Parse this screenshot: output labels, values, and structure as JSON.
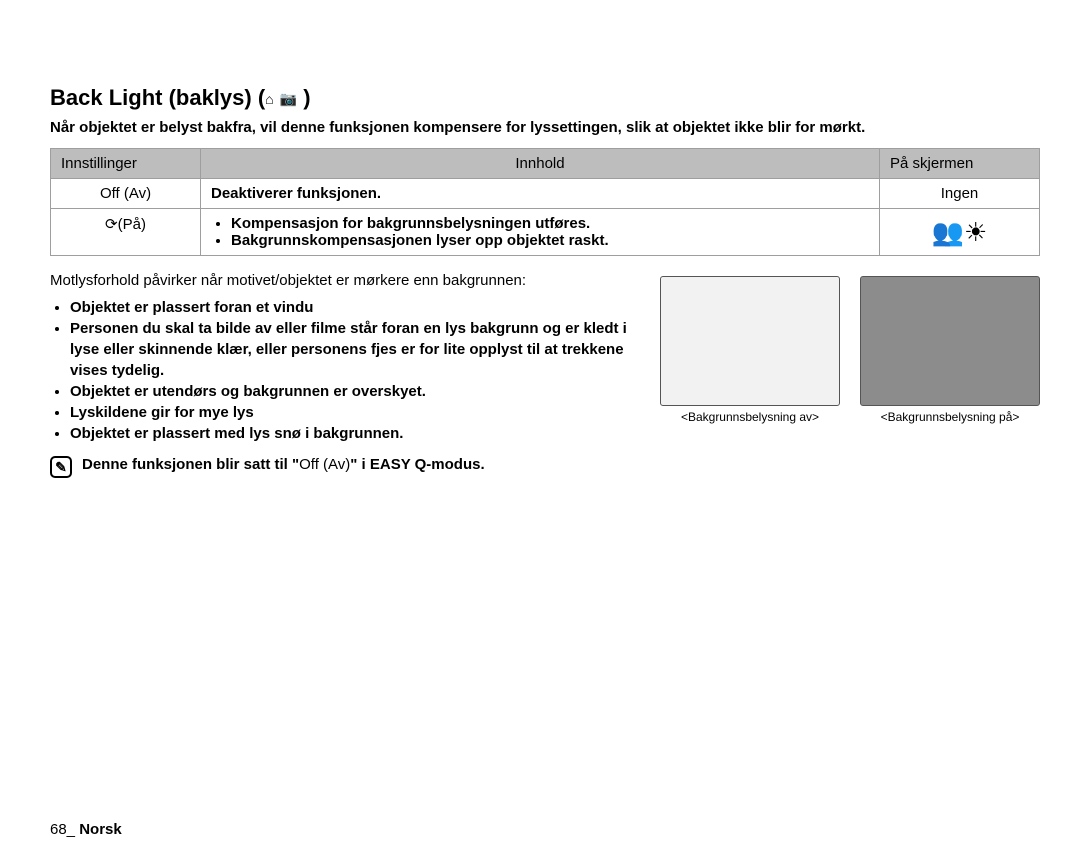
{
  "heading": {
    "title_main": "Back Light (baklys) (",
    "title_close": " )",
    "icon1": "⌂",
    "icon2": "📷"
  },
  "intro": "Når objektet er belyst bakfra, vil denne funksjonen kompensere for lyssettingen, slik at objektet ikke blir for mørkt.",
  "table": {
    "headers": {
      "c1": "Innstillinger",
      "c2": "Innhold",
      "c3": "På skjermen"
    },
    "row1": {
      "c1": "Off (Av)",
      "c2": "Deaktiverer funksjonen.",
      "c3": "Ingen"
    },
    "row2": {
      "c1_icon": "⟳",
      "c1_text": "(På)",
      "li1": "Kompensasjon for bakgrunnsbelysningen utføres.",
      "li2": "Bakgrunnskompensasjonen lyser opp objektet raskt.",
      "c3_icon": "👥☀"
    }
  },
  "lead": "Motlysforhold påvirker når motivet/objektet er mørkere enn bakgrunnen:",
  "bullets": {
    "b1": "Objektet er plassert foran et vindu",
    "b2": "Personen du skal ta bilde av eller filme står foran en lys bakgrunn og er kledt i lyse eller skinnende klær, eller personens fjes er for lite opplyst til at trekkene vises tydelig.",
    "b3": "Objektet er utendørs og bakgrunnen er overskyet.",
    "b4": "Lyskildene gir for mye lys",
    "b5": "Objektet er plassert med lys snø i bakgrunnen."
  },
  "note": {
    "pre": "Denne funksjonen blir satt til \"",
    "mid": "Off (Av)",
    "post": "\" i EASY Q-modus.",
    "icon_glyph": "✎"
  },
  "images": {
    "off_caption": "<Bakgrunnsbelysning av>",
    "on_caption": "<Bakgrunnsbelysning på>",
    "off_bg": "#f2f2f2",
    "on_bg": "#8c8c8c",
    "border_color": "#555555"
  },
  "footer": {
    "page": "68_",
    "lang": "Norsk"
  },
  "colors": {
    "header_bg": "#bdbdbd",
    "border": "#9e9e9e",
    "text": "#000000",
    "page_bg": "#ffffff"
  },
  "fonts": {
    "heading_pt": 22,
    "body_pt": 15,
    "caption_pt": 12
  }
}
